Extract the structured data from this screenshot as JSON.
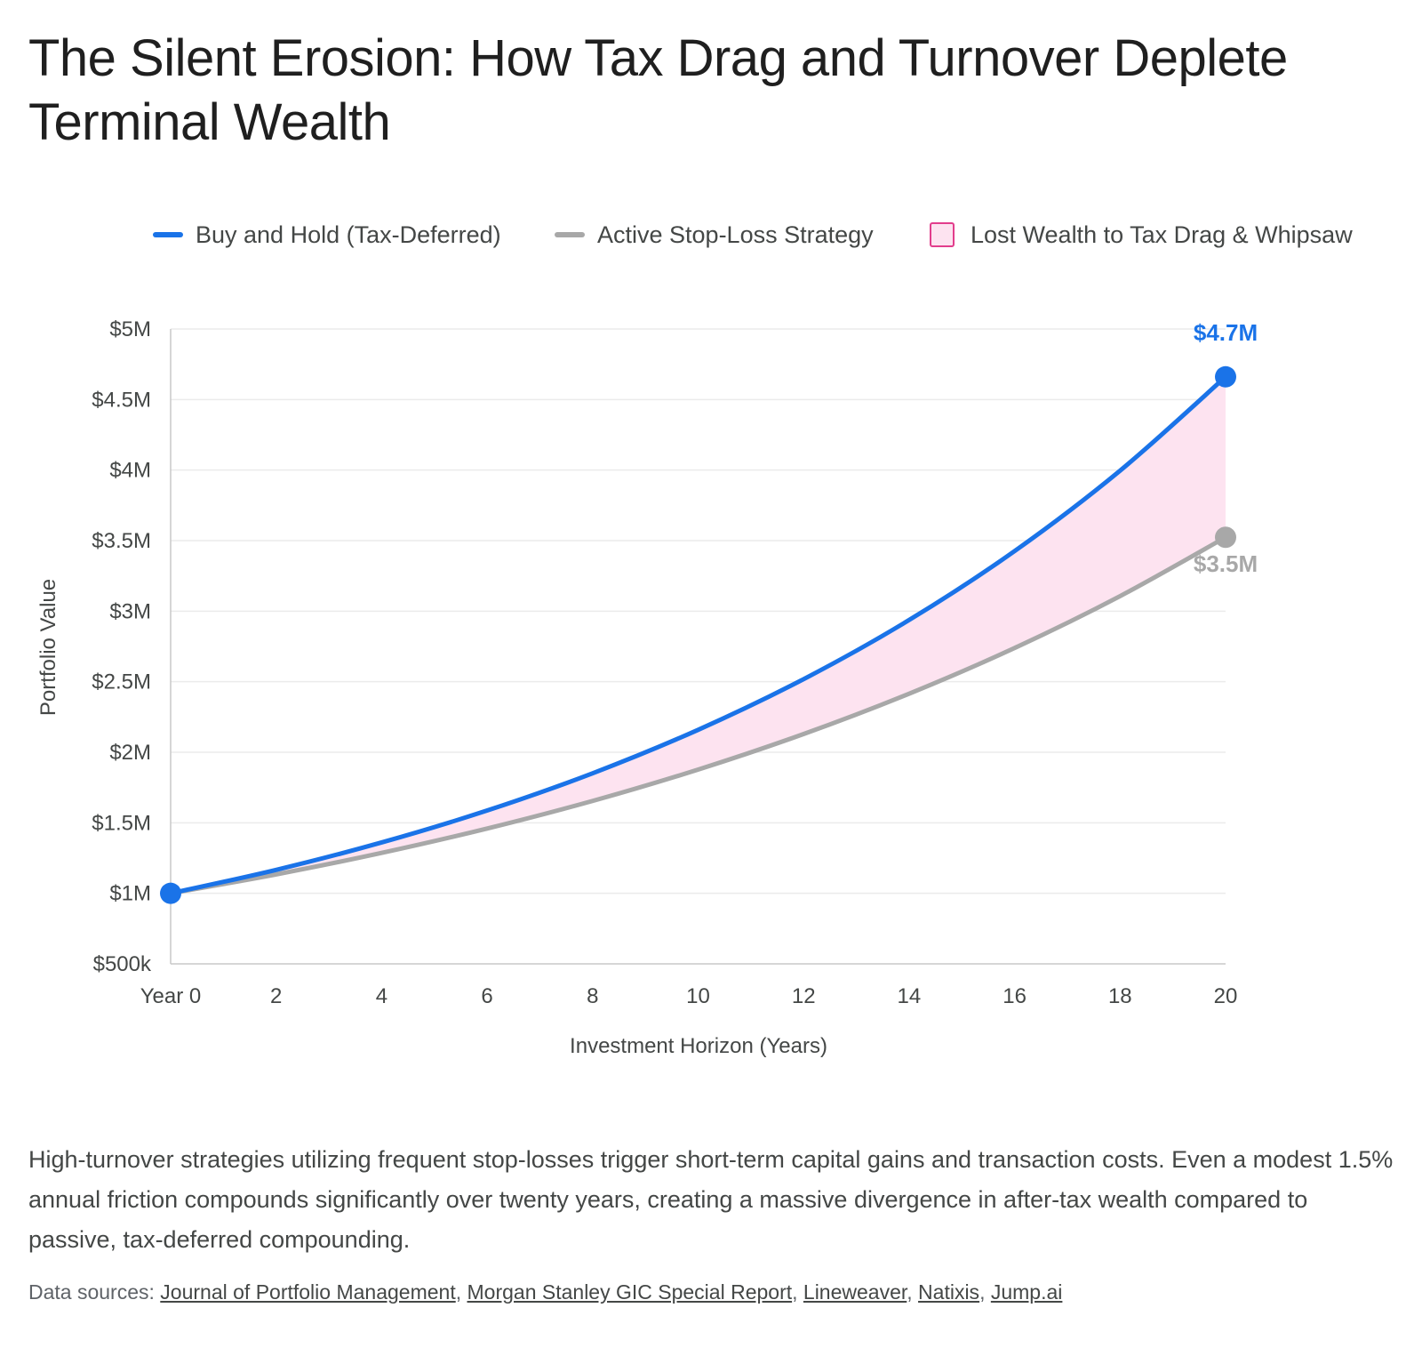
{
  "title": "The Silent Erosion: How Tax Drag and Turnover Deplete Terminal Wealth",
  "legend": {
    "buy_hold": "Buy and Hold (Tax-Deferred)",
    "active": "Active Stop-Loss Strategy",
    "lost": "Lost Wealth to Tax Drag & Whipsaw"
  },
  "colors": {
    "buy_hold": "#1a73e8",
    "active": "#a8a8a8",
    "fill": "#fde3f0",
    "fill_border": "#e23d8c",
    "grid": "#ebebeb",
    "axis": "#c8c8c8",
    "text": "#444746"
  },
  "chart_data": {
    "type": "area",
    "xlabel": "Investment Horizon (Years)",
    "ylabel": "Portfolio Value",
    "x": [
      0,
      2,
      4,
      6,
      8,
      10,
      12,
      14,
      16,
      18,
      20
    ],
    "x_tick_labels": [
      "Year 0",
      "2",
      "4",
      "6",
      "8",
      "10",
      "12",
      "14",
      "16",
      "18",
      "20"
    ],
    "ylim": [
      500000,
      5000000
    ],
    "y_ticks": [
      500000,
      1000000,
      1500000,
      2000000,
      2500000,
      3000000,
      3500000,
      4000000,
      4500000,
      5000000
    ],
    "y_tick_labels": [
      "$500k",
      "$1M",
      "$1.5M",
      "$2M",
      "$2.5M",
      "$3M",
      "$3.5M",
      "$4M",
      "$4.5M",
      "$5M"
    ],
    "grid": true,
    "legend_position": "top",
    "series": [
      {
        "name": "Buy and Hold (Tax-Deferred)",
        "values": [
          1000000,
          1166400,
          1360489,
          1586874,
          1850930,
          2158925,
          2518170,
          2937194,
          3425942,
          3996019,
          4660957
        ]
      },
      {
        "name": "Active Stop-Loss Strategy",
        "values": [
          1000000,
          1134225,
          1286466,
          1459142,
          1654996,
          1877137,
          2129096,
          2414874,
          2739010,
          3106654,
          3523645
        ]
      }
    ],
    "shaded_area": "Lost Wealth to Tax Drag & Whipsaw",
    "end_labels": {
      "buy_hold": "$4.7M",
      "active": "$3.5M"
    }
  },
  "description": "High-turnover strategies utilizing frequent stop-losses trigger short-term capital gains and transaction costs. Even a modest 1.5% annual friction compounds significantly over twenty years, creating a massive divergence in after-tax wealth compared to passive, tax-deferred compounding.",
  "sources": {
    "prefix": "Data sources:",
    "links": [
      "Journal of Portfolio Management",
      "Morgan Stanley GIC Special Report",
      "Lineweaver",
      "Natixis",
      "Jump.ai"
    ]
  }
}
